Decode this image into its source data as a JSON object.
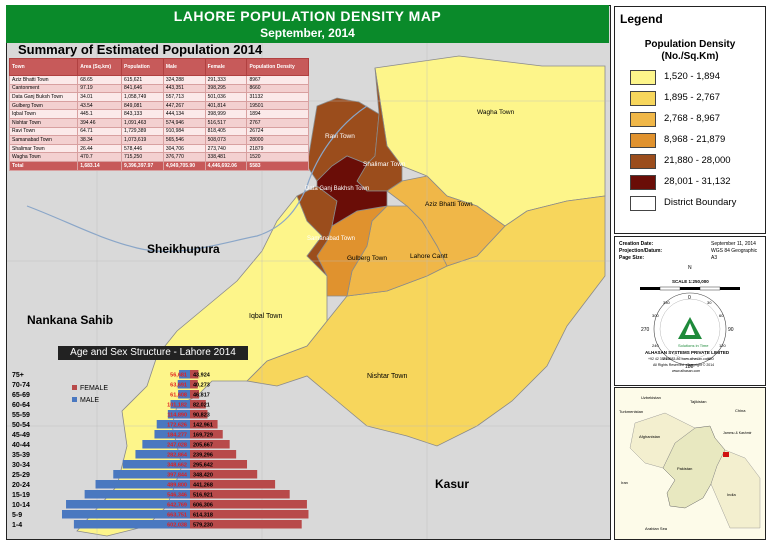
{
  "header": {
    "title": "LAHORE POPULATION DENSITY MAP",
    "date": "September, 2014"
  },
  "summary": {
    "title": "Summary of Estimated Population 2014",
    "columns": [
      "Town",
      "Area (Sq.km)",
      "Population",
      "Male",
      "Female",
      "Population Density"
    ],
    "rows": [
      [
        "Aziz Bhatti Town",
        "68.65",
        "615,621",
        "324,288",
        "291,333",
        "8967"
      ],
      [
        "Cantonment",
        "97.19",
        "841,646",
        "443,351",
        "398,295",
        "8660"
      ],
      [
        "Data Ganj Buksh Town",
        "34.01",
        "1,058,749",
        "557,713",
        "501,036",
        "31132"
      ],
      [
        "Gulberg Town",
        "43.54",
        "849,081",
        "447,267",
        "401,814",
        "19501"
      ],
      [
        "Iqbal Town",
        "445.1",
        "843,133",
        "444,134",
        "398,999",
        "1894"
      ],
      [
        "Nishtar Town",
        "394.46",
        "1,091,463",
        "574,946",
        "516,517",
        "2767"
      ],
      [
        "Ravi Town",
        "64.71",
        "1,729,389",
        "910,984",
        "818,405",
        "26724"
      ],
      [
        "Samanabad Town",
        "38.34",
        "1,073,619",
        "565,546",
        "508,073",
        "28000"
      ],
      [
        "Shalimar Town",
        "26.44",
        "578,446",
        "304,706",
        "273,740",
        "21879"
      ],
      [
        "Wagha Town",
        "470.7",
        "715,250",
        "376,770",
        "338,481",
        "1520"
      ]
    ],
    "total": [
      "Total",
      "1,683.14",
      "9,396,397.97",
      "4,949,705.90",
      "4,446,692.06",
      "5583"
    ]
  },
  "map_labels": {
    "sheikhupura": "Sheikhupura",
    "nankana": "Nankana Sahib",
    "kasur": "Kasur",
    "wagha": "Wagha Town",
    "ravi": "Ravi Town",
    "shalimar": "Shalimar Town",
    "data_ganj": "Data Ganj Bakhsh Town",
    "aziz_bhatti": "Aziz Bhatti Town",
    "samanabad": "Samanabad Town",
    "gulberg": "Gulberg Town",
    "cantt": "Lahore Cantt",
    "iqbal": "Iqbal Town",
    "nishtar": "Nishtar Town"
  },
  "pyramid": {
    "title": "Age and Sex Structure - Lahore 2014",
    "legend_female": "FEMALE",
    "legend_male": "MALE",
    "female_color": "#b84a4a",
    "male_color": "#4a78c0",
    "age_groups": [
      "75+",
      "70-74",
      "65-69",
      "60-64",
      "55-59",
      "50-54",
      "45-49",
      "40-44",
      "35-39",
      "30-34",
      "25-29",
      "20-24",
      "15-19",
      "10-14",
      "5-9",
      "1-4"
    ],
    "male_labels": [
      "56,681",
      "63,691",
      "61,608",
      "101,182",
      "114,890",
      "172,626",
      "184,277",
      "247,028",
      "282,864",
      "348,662",
      "397,844",
      "489,800",
      "546,346",
      "642,769",
      "663,751",
      "602,038"
    ],
    "female_labels": [
      "43,924",
      "40,273",
      "46,817",
      "82,021",
      "90,823",
      "142,961",
      "169,729",
      "205,667",
      "239,296",
      "295,642",
      "348,420",
      "441,268",
      "516,921",
      "606,306",
      "614,318",
      "579,230"
    ],
    "male_values": [
      56681,
      63691,
      61608,
      101182,
      114890,
      172626,
      184277,
      247028,
      282864,
      348662,
      397844,
      489800,
      546346,
      642769,
      663751,
      602038
    ],
    "female_values": [
      43924,
      40273,
      46817,
      82021,
      90823,
      142961,
      169729,
      205667,
      239296,
      295642,
      348420,
      441268,
      516921,
      606306,
      614318,
      579230
    ]
  },
  "legend": {
    "title": "Legend",
    "subtitle_line1": "Population Density",
    "subtitle_line2": "(No./Sq.Km)",
    "items": [
      {
        "label": "1,520 - 1,894",
        "color": "#fdf58a"
      },
      {
        "label": "1,895 - 2,767",
        "color": "#f7d65c"
      },
      {
        "label": "2,768 - 8,967",
        "color": "#f0b748"
      },
      {
        "label": "8,968 - 21,879",
        "color": "#e0922e"
      },
      {
        "label": "21,880 - 28,000",
        "color": "#9b4d1c"
      },
      {
        "label": "28,001 - 31,132",
        "color": "#6a0d07"
      },
      {
        "label": "District Boundary",
        "color": "#ffffff"
      }
    ]
  },
  "info": {
    "creation_date_label": "Creation Date:",
    "creation_date_value": "September 11, 2014",
    "projection_label": "Projection/Datum:",
    "projection_value": "WGS 84 Geographic",
    "page_size_label": "Page Size:",
    "page_size_value": "A3",
    "scale": "SCALE 1:250,000",
    "compass_n": "N",
    "deg_0": "0",
    "deg_90": "90",
    "deg_180": "180",
    "deg_270": "270",
    "deg_30": "30",
    "deg_60": "60",
    "deg_120": "120",
    "deg_150": "150",
    "deg_210": "210",
    "deg_240": "240",
    "deg_300": "300",
    "deg_330": "330",
    "tagline": "Solutions in Time",
    "company": "ALHASAN SYSTEMS PRIVATE LIMITED",
    "contact": "+92 42 35913583-86  www.alhasan.com",
    "rights": "All Rights Reserved - Copyright © 2014",
    "website": "www.alhasan.com"
  },
  "inset": {
    "labels": [
      "Uzbekistan",
      "Tajikistan",
      "Turkmenistan",
      "China",
      "Afghanistan",
      "Jammu & Kashmir",
      "Pakistan",
      "Iran",
      "India",
      "Arabian Sea"
    ]
  },
  "colors": {
    "header_green": "#0a8a2a",
    "table_header": "#c75a5a",
    "outside_gray": "#d9d9d9",
    "iqbal_fill": "#fdf58a"
  }
}
